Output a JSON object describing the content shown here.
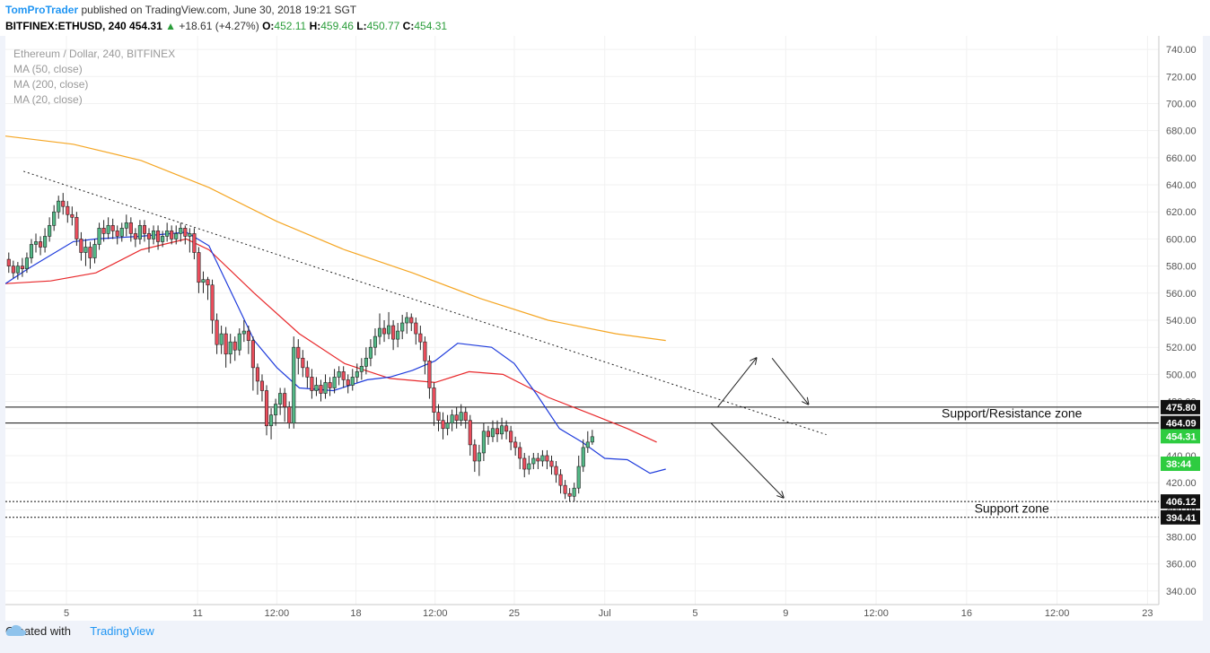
{
  "header": {
    "author": "TomProTrader",
    "published_text": "published on TradingView.com, June 30, 2018 19:21 SGT",
    "symbol": "BITFINEX:ETHUSD, 240",
    "last_price": "454.31",
    "change_arrow": "▲",
    "change": "+18.61 (+4.27%)",
    "o_label": "O:",
    "o_value": "452.11",
    "h_label": "H:",
    "h_value": "459.46",
    "l_label": "L:",
    "l_value": "450.77",
    "c_label": "C:",
    "c_value": "454.31"
  },
  "legend": {
    "title": "Ethereum / Dollar, 240, BITFINEX",
    "ma1": "MA (50, close)",
    "ma2": "MA (200, close)",
    "ma3": "MA (20, close)"
  },
  "footer": {
    "created_with": "Created with",
    "brand": "TradingView"
  },
  "colors": {
    "up_candle": "#53b987",
    "down_candle": "#eb4d5c",
    "ma_20": "#1e3bdc",
    "ma_50": "#e8282b",
    "ma_200": "#f5a623",
    "accent": "#2196f3",
    "last_price_label": "#2ecc40"
  },
  "chart_data": {
    "type": "candlestick",
    "title": "Ethereum / Dollar, 240, BITFINEX",
    "ylim": [
      330,
      750
    ],
    "y_ticks": [
      340,
      360,
      380,
      400,
      420,
      440,
      460,
      480,
      500,
      520,
      540,
      560,
      580,
      600,
      620,
      640,
      660,
      680,
      700,
      720,
      740
    ],
    "x_ticks": [
      "5",
      "11",
      "12:00",
      "18",
      "12:00",
      "25",
      "Jul",
      "5",
      "9",
      "12:00",
      "16",
      "12:00",
      "23"
    ],
    "x_range_days": [
      0,
      51
    ],
    "x_tick_days": [
      2.7,
      8.5,
      12.0,
      15.5,
      19.0,
      22.5,
      26.5,
      30.5,
      34.5,
      38.5,
      42.5,
      46.5,
      50.5
    ],
    "price_labels": [
      {
        "value": 475.8,
        "text": "475.80",
        "style": "dark"
      },
      {
        "value": 464.09,
        "text": "464.09",
        "style": "dark"
      },
      {
        "value": 454.31,
        "text": "454.31",
        "style": "green"
      },
      {
        "value": 434.0,
        "text": "38:44",
        "style": "green"
      },
      {
        "value": 406.12,
        "text": "406.12",
        "style": "dark"
      },
      {
        "value": 394.41,
        "text": "394.41",
        "style": "dark"
      }
    ],
    "horizontal_levels": [
      {
        "value": 475.8,
        "dash": false
      },
      {
        "value": 464.09,
        "dash": false
      },
      {
        "value": 406.12,
        "dash": true
      },
      {
        "value": 394.41,
        "dash": true
      }
    ],
    "annotations": [
      {
        "text": "Support/Resistance zone",
        "x_day": 44.5,
        "y": 468
      },
      {
        "text": "Support zone",
        "x_day": 44.5,
        "y": 398
      }
    ],
    "trendline": {
      "x_day": [
        0.8,
        36.3
      ],
      "y": [
        650,
        455.5
      ]
    },
    "projection_arrows": [
      {
        "x_day": [
          31.5,
          33.2
        ],
        "y": [
          476,
          512
        ]
      },
      {
        "x_day": [
          33.9,
          35.5
        ],
        "y": [
          512,
          478
        ]
      },
      {
        "x_day": [
          31.2,
          34.4
        ],
        "y": [
          464,
          409
        ]
      }
    ],
    "series": [
      {
        "name": "MA (200, close)",
        "color_key": "ma_200",
        "points": [
          [
            0,
            676
          ],
          [
            3,
            670
          ],
          [
            6,
            658
          ],
          [
            9,
            638
          ],
          [
            12,
            613
          ],
          [
            15,
            592
          ],
          [
            18,
            575
          ],
          [
            21,
            556
          ],
          [
            24,
            540
          ],
          [
            27,
            530
          ],
          [
            29.2,
            525
          ]
        ]
      },
      {
        "name": "MA (50, close)",
        "color_key": "ma_50",
        "points": [
          [
            0,
            567
          ],
          [
            2,
            569
          ],
          [
            4,
            575
          ],
          [
            6,
            592
          ],
          [
            8,
            600
          ],
          [
            9,
            592
          ],
          [
            11,
            560
          ],
          [
            13,
            530
          ],
          [
            15,
            508
          ],
          [
            17,
            497
          ],
          [
            19,
            494
          ],
          [
            20.5,
            502
          ],
          [
            22,
            500
          ],
          [
            24,
            483
          ],
          [
            26,
            470
          ],
          [
            27.5,
            460
          ],
          [
            28.8,
            450
          ]
        ]
      },
      {
        "name": "MA (20, close)",
        "color_key": "ma_20",
        "points": [
          [
            0,
            567
          ],
          [
            1,
            578
          ],
          [
            3,
            598
          ],
          [
            4,
            600
          ],
          [
            6,
            602
          ],
          [
            8,
            605
          ],
          [
            9,
            595
          ],
          [
            10,
            560
          ],
          [
            11,
            525
          ],
          [
            12,
            505
          ],
          [
            13,
            490
          ],
          [
            14.5,
            488
          ],
          [
            16,
            496
          ],
          [
            17,
            498
          ],
          [
            18,
            503
          ],
          [
            19,
            510
          ],
          [
            20,
            523
          ],
          [
            21.5,
            520
          ],
          [
            22.5,
            508
          ],
          [
            23.5,
            485
          ],
          [
            24.5,
            460
          ],
          [
            25.5,
            450
          ],
          [
            26.5,
            438
          ],
          [
            27.5,
            437
          ],
          [
            28.5,
            427
          ],
          [
            29.2,
            430
          ]
        ]
      }
    ],
    "candles": [
      [
        0.15,
        585,
        580,
        590,
        575
      ],
      [
        0.35,
        580,
        575,
        584,
        571
      ],
      [
        0.55,
        575,
        580,
        583,
        570
      ],
      [
        0.75,
        580,
        578,
        586,
        572
      ],
      [
        0.95,
        578,
        586,
        590,
        575
      ],
      [
        1.15,
        586,
        596,
        600,
        582
      ],
      [
        1.35,
        596,
        598,
        604,
        590
      ],
      [
        1.55,
        598,
        594,
        602,
        588
      ],
      [
        1.75,
        594,
        602,
        608,
        590
      ],
      [
        1.95,
        602,
        610,
        616,
        598
      ],
      [
        2.15,
        610,
        620,
        625,
        606
      ],
      [
        2.35,
        620,
        628,
        632,
        615
      ],
      [
        2.55,
        628,
        624,
        634,
        618
      ],
      [
        2.75,
        624,
        618,
        628,
        612
      ],
      [
        2.95,
        618,
        616,
        624,
        610
      ],
      [
        3.15,
        616,
        600,
        620,
        595
      ],
      [
        3.35,
        600,
        590,
        605,
        584
      ],
      [
        3.55,
        590,
        594,
        600,
        580
      ],
      [
        3.75,
        594,
        586,
        598,
        578
      ],
      [
        3.95,
        586,
        596,
        600,
        582
      ],
      [
        4.15,
        596,
        608,
        612,
        592
      ],
      [
        4.35,
        608,
        604,
        614,
        598
      ],
      [
        4.55,
        604,
        610,
        616,
        600
      ],
      [
        4.75,
        610,
        606,
        615,
        600
      ],
      [
        4.95,
        606,
        602,
        610,
        596
      ],
      [
        5.15,
        602,
        608,
        612,
        598
      ],
      [
        5.35,
        608,
        612,
        618,
        602
      ],
      [
        5.55,
        612,
        604,
        616,
        598
      ],
      [
        5.75,
        604,
        600,
        608,
        594
      ],
      [
        5.95,
        600,
        610,
        614,
        596
      ],
      [
        6.15,
        610,
        604,
        614,
        598
      ],
      [
        6.35,
        604,
        600,
        608,
        590
      ],
      [
        6.55,
        600,
        606,
        610,
        596
      ],
      [
        6.75,
        606,
        598,
        610,
        592
      ],
      [
        6.95,
        598,
        602,
        606,
        594
      ],
      [
        7.15,
        602,
        606,
        612,
        598
      ],
      [
        7.35,
        606,
        600,
        610,
        596
      ],
      [
        7.55,
        600,
        604,
        610,
        596
      ],
      [
        7.75,
        604,
        608,
        612,
        598
      ],
      [
        7.95,
        608,
        602,
        610,
        596
      ],
      [
        8.15,
        602,
        604,
        608,
        590
      ],
      [
        8.35,
        604,
        590,
        608,
        585
      ],
      [
        8.55,
        590,
        568,
        594,
        560
      ],
      [
        8.75,
        568,
        570,
        576,
        560
      ],
      [
        8.95,
        570,
        566,
        572,
        555
      ],
      [
        9.15,
        566,
        540,
        570,
        530
      ],
      [
        9.35,
        540,
        522,
        545,
        515
      ],
      [
        9.55,
        522,
        530,
        536,
        515
      ],
      [
        9.75,
        530,
        515,
        535,
        505
      ],
      [
        9.95,
        515,
        524,
        530,
        508
      ],
      [
        10.15,
        524,
        518,
        528,
        510
      ],
      [
        10.35,
        518,
        530,
        534,
        514
      ],
      [
        10.55,
        530,
        532,
        540,
        524
      ],
      [
        10.75,
        532,
        525,
        536,
        515
      ],
      [
        10.95,
        525,
        505,
        528,
        488
      ],
      [
        11.15,
        505,
        495,
        508,
        485
      ],
      [
        11.35,
        495,
        488,
        500,
        480
      ],
      [
        11.55,
        488,
        462,
        492,
        455
      ],
      [
        11.75,
        462,
        470,
        475,
        452
      ],
      [
        11.95,
        470,
        478,
        482,
        462
      ],
      [
        12.15,
        478,
        486,
        490,
        470
      ],
      [
        12.35,
        486,
        476,
        490,
        465
      ],
      [
        12.55,
        476,
        464,
        480,
        460
      ],
      [
        12.75,
        464,
        520,
        528,
        460
      ],
      [
        12.95,
        520,
        512,
        526,
        500
      ],
      [
        13.15,
        512,
        505,
        518,
        498
      ],
      [
        13.35,
        505,
        498,
        510,
        490
      ],
      [
        13.55,
        498,
        488,
        504,
        482
      ],
      [
        13.75,
        488,
        492,
        498,
        484
      ],
      [
        13.95,
        492,
        486,
        496,
        480
      ],
      [
        14.15,
        486,
        494,
        500,
        482
      ],
      [
        14.35,
        494,
        490,
        498,
        484
      ],
      [
        14.55,
        490,
        498,
        504,
        486
      ],
      [
        14.75,
        498,
        502,
        506,
        492
      ],
      [
        14.95,
        502,
        496,
        506,
        490
      ],
      [
        15.15,
        496,
        492,
        500,
        486
      ],
      [
        15.35,
        492,
        498,
        504,
        488
      ],
      [
        15.55,
        498,
        502,
        508,
        494
      ],
      [
        15.75,
        502,
        506,
        512,
        496
      ],
      [
        15.95,
        506,
        512,
        520,
        500
      ],
      [
        16.15,
        512,
        520,
        526,
        506
      ],
      [
        16.35,
        520,
        528,
        534,
        514
      ],
      [
        16.55,
        528,
        534,
        545,
        522
      ],
      [
        16.75,
        534,
        530,
        540,
        524
      ],
      [
        16.95,
        530,
        536,
        546,
        526
      ],
      [
        17.15,
        536,
        526,
        540,
        518
      ],
      [
        17.35,
        526,
        532,
        538,
        520
      ],
      [
        17.55,
        532,
        538,
        544,
        526
      ],
      [
        17.75,
        538,
        542,
        546,
        530
      ],
      [
        17.95,
        542,
        538,
        545,
        532
      ],
      [
        18.15,
        538,
        530,
        542,
        522
      ],
      [
        18.35,
        530,
        524,
        536,
        518
      ],
      [
        18.55,
        524,
        510,
        528,
        500
      ],
      [
        18.75,
        510,
        490,
        514,
        482
      ],
      [
        18.95,
        490,
        472,
        494,
        462
      ],
      [
        19.15,
        472,
        466,
        478,
        458
      ],
      [
        19.35,
        466,
        460,
        472,
        452
      ],
      [
        19.55,
        460,
        464,
        470,
        455
      ],
      [
        19.75,
        464,
        470,
        474,
        458
      ],
      [
        19.95,
        470,
        466,
        476,
        460
      ],
      [
        20.15,
        466,
        472,
        478,
        462
      ],
      [
        20.35,
        472,
        466,
        476,
        460
      ],
      [
        20.55,
        466,
        448,
        470,
        440
      ],
      [
        20.75,
        448,
        436,
        452,
        428
      ],
      [
        20.95,
        436,
        442,
        448,
        425
      ],
      [
        21.15,
        442,
        458,
        464,
        436
      ],
      [
        21.35,
        458,
        454,
        462,
        448
      ],
      [
        21.55,
        454,
        460,
        466,
        450
      ],
      [
        21.75,
        460,
        456,
        466,
        450
      ],
      [
        21.95,
        456,
        462,
        468,
        452
      ],
      [
        22.15,
        462,
        458,
        466,
        452
      ],
      [
        22.35,
        458,
        450,
        462,
        444
      ],
      [
        22.55,
        450,
        446,
        454,
        440
      ],
      [
        22.75,
        446,
        438,
        450,
        430
      ],
      [
        22.95,
        438,
        430,
        442,
        424
      ],
      [
        23.15,
        430,
        434,
        440,
        426
      ],
      [
        23.35,
        434,
        438,
        442,
        430
      ],
      [
        23.55,
        438,
        436,
        442,
        430
      ],
      [
        23.75,
        436,
        440,
        444,
        432
      ],
      [
        23.95,
        440,
        436,
        444,
        430
      ],
      [
        24.15,
        436,
        432,
        440,
        426
      ],
      [
        24.35,
        432,
        426,
        436,
        420
      ],
      [
        24.55,
        426,
        418,
        430,
        412
      ],
      [
        24.75,
        418,
        412,
        422,
        408
      ],
      [
        24.95,
        412,
        410,
        416,
        406
      ],
      [
        25.15,
        410,
        416,
        420,
        406
      ],
      [
        25.35,
        416,
        432,
        440,
        412
      ],
      [
        25.55,
        432,
        446,
        452,
        428
      ],
      [
        25.75,
        446,
        450,
        458,
        442
      ],
      [
        25.95,
        450,
        454,
        459,
        448
      ]
    ]
  }
}
